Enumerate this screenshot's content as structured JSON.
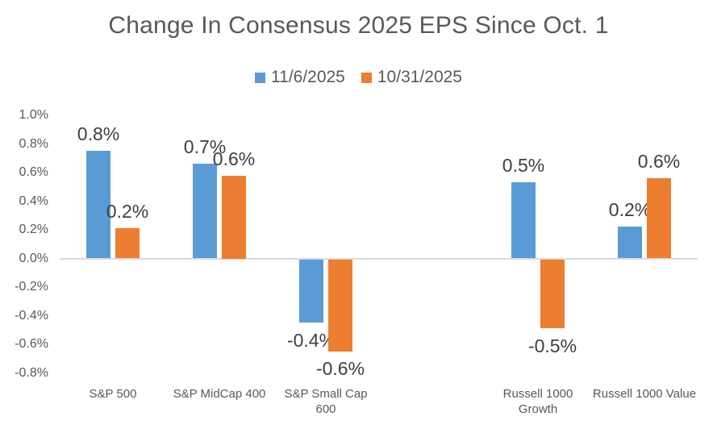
{
  "chart_data": {
    "type": "bar",
    "title": "Change In Consensus 2025 EPS Since Oct. 1",
    "categories": [
      "S&P 500",
      "S&P MidCap 400",
      "S&P Small Cap 600",
      "",
      "Russell 1000 Growth",
      "Russell 1000 Value"
    ],
    "series": [
      {
        "name": "11/6/2025",
        "color": "#5B9BD5",
        "values": [
          0.75,
          0.66,
          -0.44,
          null,
          0.53,
          0.22
        ],
        "data_labels": [
          "0.8%",
          "0.7%",
          "-0.4%",
          "",
          "0.5%",
          "0.2%"
        ]
      },
      {
        "name": "10/31/2025",
        "color": "#ED7D31",
        "values": [
          0.21,
          0.58,
          -0.64,
          null,
          -0.48,
          0.56
        ],
        "data_labels": [
          "0.2%",
          "0.6%",
          "-0.6%",
          "",
          "-0.5%",
          "0.6%"
        ]
      }
    ],
    "y_axis": {
      "ticks": [
        "1.0%",
        "0.8%",
        "0.6%",
        "0.4%",
        "0.2%",
        "0.0%",
        "-0.2%",
        "-0.4%",
        "-0.6%",
        "-0.8%"
      ],
      "min": -0.8,
      "max": 1.0,
      "unit": "%"
    },
    "grid": false,
    "legend_position": "top",
    "axis_line_color": "#D9D9D9",
    "text_color": "#595959",
    "data_label_color": "#3F3F3F"
  }
}
